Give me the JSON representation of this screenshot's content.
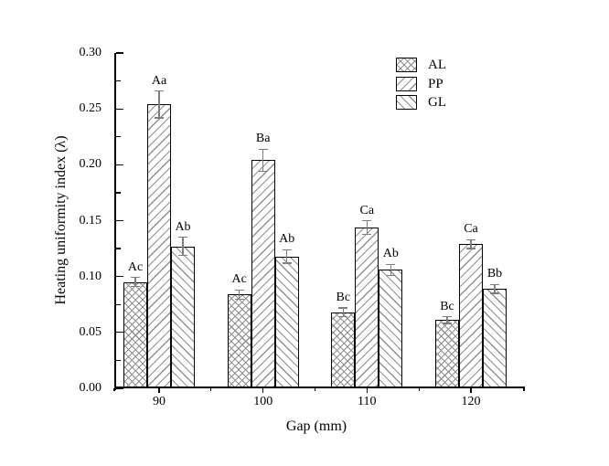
{
  "chart_data": {
    "type": "bar",
    "title": "",
    "xlabel": "Gap (mm)",
    "ylabel": "Heating uniformity index (λ)",
    "categories": [
      "90",
      "100",
      "110",
      "120"
    ],
    "series": [
      {
        "name": "AL",
        "hatch": "cross",
        "values": [
          0.095,
          0.084,
          0.068,
          0.061
        ],
        "errors": [
          0.004,
          0.004,
          0.004,
          0.003
        ],
        "point_labels": [
          "Ac",
          "Ac",
          "Bc",
          "Bc"
        ]
      },
      {
        "name": "PP",
        "hatch": "diag-up",
        "values": [
          0.254,
          0.204,
          0.144,
          0.129
        ],
        "errors": [
          0.012,
          0.01,
          0.006,
          0.004
        ],
        "point_labels": [
          "Aa",
          "Ba",
          "Ca",
          "Ca"
        ]
      },
      {
        "name": "GL",
        "hatch": "diag-down",
        "values": [
          0.127,
          0.118,
          0.106,
          0.089
        ],
        "errors": [
          0.008,
          0.006,
          0.005,
          0.004
        ],
        "point_labels": [
          "Ab",
          "Ab",
          "Ab",
          "Bb"
        ]
      }
    ],
    "ylim": [
      0.0,
      0.3
    ],
    "ytick_step": 0.05,
    "ytick_minor_step": 0.025,
    "ytick_labels": [
      "0.00",
      "0.05",
      "0.10",
      "0.15",
      "0.20",
      "0.25",
      "0.30"
    ],
    "legend": {
      "position": "upper-right",
      "entries": [
        "AL",
        "PP",
        "GL"
      ]
    },
    "grid": false,
    "colors": {
      "background": "#ffffff",
      "axis": "#000000",
      "text": "#000000",
      "bar_fill": "#ffffff",
      "bar_border": "#000000",
      "hatch": "#8f8f8f",
      "error_bar": "#7f7f7f"
    }
  }
}
